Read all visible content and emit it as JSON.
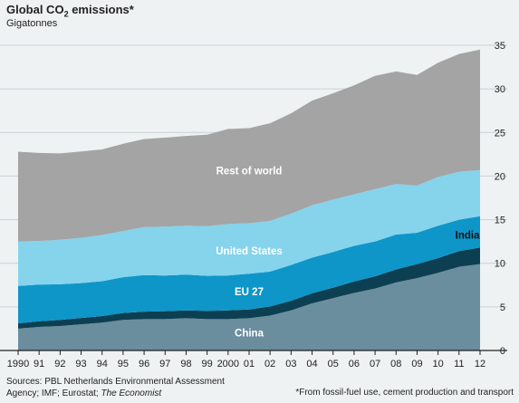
{
  "header": {
    "title_prefix": "Global CO",
    "title_sub": "2",
    "title_suffix": " emissions*",
    "subtitle": "Gigatonnes"
  },
  "footer": {
    "source_line1": "Sources: PBL Netherlands Environmental Assessment",
    "source_line2": "Agency; IMF; Eurostat;",
    "source_italic": "The Economist",
    "footnote": "*From fossil-fuel use, cement production and transport"
  },
  "chart_data": {
    "type": "area",
    "stacked": true,
    "title": "Global CO2 emissions*",
    "ylabel": "Gigatonnes",
    "ylim": [
      0,
      35
    ],
    "yticks": [
      0,
      5,
      10,
      15,
      20,
      25,
      30,
      35
    ],
    "y_axis_side": "right",
    "grid": true,
    "categories": [
      1990,
      1991,
      1992,
      1993,
      1994,
      1995,
      1996,
      1997,
      1998,
      1999,
      2000,
      2001,
      2002,
      2003,
      2004,
      2005,
      2006,
      2007,
      2008,
      2009,
      2010,
      2011,
      2012
    ],
    "tick_labels": [
      "1990",
      "91",
      "92",
      "93",
      "94",
      "95",
      "96",
      "97",
      "98",
      "99",
      "2000",
      "01",
      "02",
      "03",
      "04",
      "05",
      "06",
      "07",
      "08",
      "09",
      "10",
      "11",
      "12"
    ],
    "series": [
      {
        "name": "China",
        "color": "#6a8e9e",
        "values": [
          2.5,
          2.7,
          2.8,
          3.0,
          3.2,
          3.5,
          3.6,
          3.6,
          3.7,
          3.6,
          3.6,
          3.7,
          4.0,
          4.6,
          5.4,
          6.0,
          6.6,
          7.1,
          7.8,
          8.3,
          8.9,
          9.6,
          9.9
        ]
      },
      {
        "name": "India",
        "color": "#0d3f52",
        "values": [
          0.6,
          0.65,
          0.7,
          0.72,
          0.75,
          0.8,
          0.85,
          0.9,
          0.9,
          0.95,
          1.0,
          1.0,
          1.05,
          1.1,
          1.15,
          1.2,
          1.3,
          1.4,
          1.5,
          1.6,
          1.7,
          1.8,
          1.9
        ]
      },
      {
        "name": "EU 27",
        "color": "#0e96c8",
        "values": [
          4.3,
          4.2,
          4.1,
          4.0,
          4.0,
          4.1,
          4.2,
          4.1,
          4.1,
          4.0,
          4.0,
          4.1,
          4.0,
          4.1,
          4.1,
          4.1,
          4.1,
          4.0,
          4.0,
          3.6,
          3.7,
          3.6,
          3.6
        ]
      },
      {
        "name": "United States",
        "color": "#86d3ec",
        "values": [
          5.1,
          5.0,
          5.1,
          5.2,
          5.3,
          5.3,
          5.5,
          5.6,
          5.6,
          5.7,
          5.9,
          5.8,
          5.8,
          5.9,
          6.0,
          6.0,
          5.9,
          6.0,
          5.8,
          5.4,
          5.6,
          5.5,
          5.3
        ]
      },
      {
        "name": "Rest of world",
        "color": "#a4a4a4",
        "values": [
          10.3,
          10.1,
          9.9,
          9.9,
          9.8,
          10.0,
          10.1,
          10.2,
          10.3,
          10.5,
          10.9,
          10.9,
          11.2,
          11.5,
          12.0,
          12.2,
          12.5,
          13.0,
          12.9,
          12.7,
          13.1,
          13.5,
          13.8
        ]
      }
    ],
    "area_labels": [
      {
        "series": "China",
        "text": "China"
      },
      {
        "series": "India",
        "text": "India"
      },
      {
        "series": "EU 27",
        "text": "EU 27"
      },
      {
        "series": "United States",
        "text": "United States"
      },
      {
        "series": "Rest of world",
        "text": "Rest of world"
      }
    ]
  }
}
